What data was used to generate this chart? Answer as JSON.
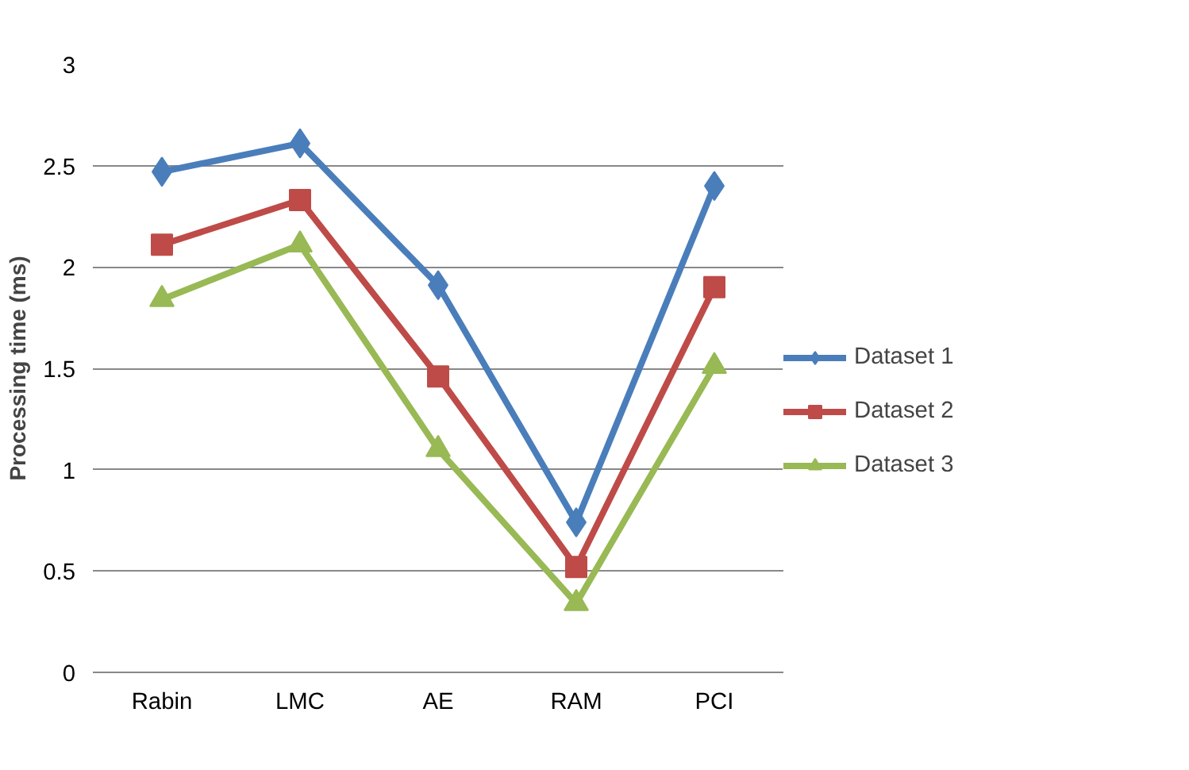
{
  "chart_data": {
    "type": "line",
    "ylabel": "Processing time (ms)",
    "categories": [
      "Rabin",
      "LMC",
      "AE",
      "RAM",
      "PCI"
    ],
    "series": [
      {
        "name": "Dataset 1",
        "color": "#4a7ebb",
        "marker": "diamond",
        "values": [
          2.47,
          2.61,
          1.91,
          0.74,
          2.4
        ]
      },
      {
        "name": "Dataset 2",
        "color": "#be4b48",
        "marker": "square",
        "values": [
          2.11,
          2.33,
          1.46,
          0.52,
          1.9
        ]
      },
      {
        "name": "Dataset 3",
        "color": "#98b954",
        "marker": "triangle",
        "values": [
          1.84,
          2.11,
          1.1,
          0.34,
          1.51
        ]
      }
    ],
    "ylim": [
      0,
      3
    ],
    "yticks": [
      0,
      0.5,
      1,
      1.5,
      2,
      2.5,
      3
    ],
    "grid": "y",
    "legend": "right",
    "line_style": "solid"
  }
}
